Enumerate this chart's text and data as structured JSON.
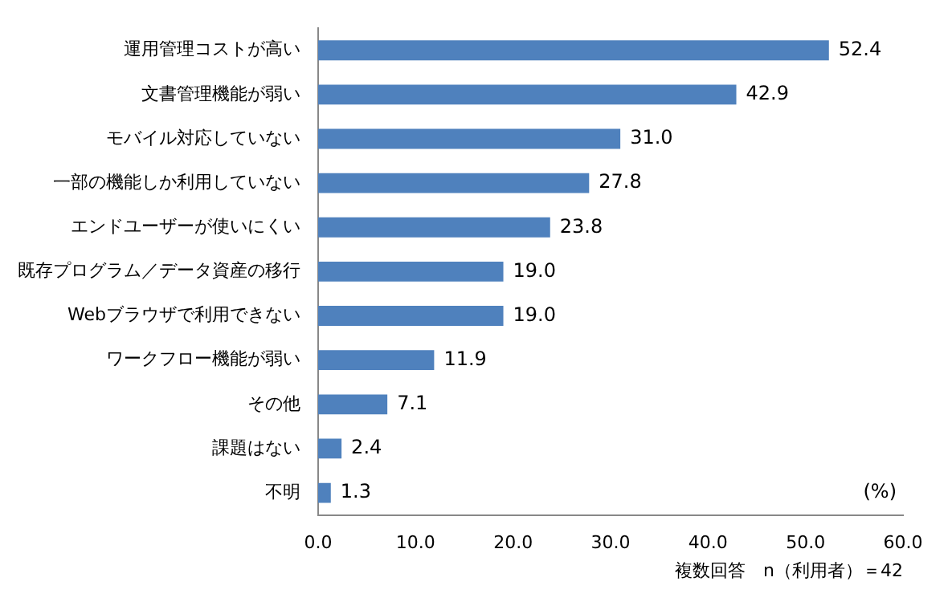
{
  "chart_data": {
    "type": "bar",
    "orientation": "horizontal",
    "categories": [
      "運用管理コストが高い",
      "文書管理機能が弱い",
      "モバイル対応していない",
      "一部の機能しか利用していない",
      "エンドユーザーが使いにくい",
      "既存プログラム／データ資産の移行",
      "Webブラウザで利用できない",
      "ワークフロー機能が弱い",
      "その他",
      "課題はない",
      "不明"
    ],
    "values": [
      52.4,
      42.9,
      31.0,
      27.8,
      23.8,
      19.0,
      19.0,
      11.9,
      7.1,
      2.4,
      1.3
    ],
    "value_labels": [
      "52.4",
      "42.9",
      "31.0",
      "27.8",
      "23.8",
      "19.0",
      "19.0",
      "11.9",
      "7.1",
      "2.4",
      "1.3"
    ],
    "color": "#4f81bd",
    "xlim": [
      0,
      60
    ],
    "xticks": [
      {
        "value": 0,
        "label": "0.0"
      },
      {
        "value": 10,
        "label": "10.0"
      },
      {
        "value": 20,
        "label": "20.0"
      },
      {
        "value": 30,
        "label": "30.0"
      },
      {
        "value": 40,
        "label": "40.0"
      },
      {
        "value": 50,
        "label": "50.0"
      },
      {
        "value": 60,
        "label": "60.0"
      }
    ],
    "grid": false,
    "legend": false,
    "annotations": [
      "(%)",
      "複数回答　n（利用者）＝42"
    ]
  }
}
